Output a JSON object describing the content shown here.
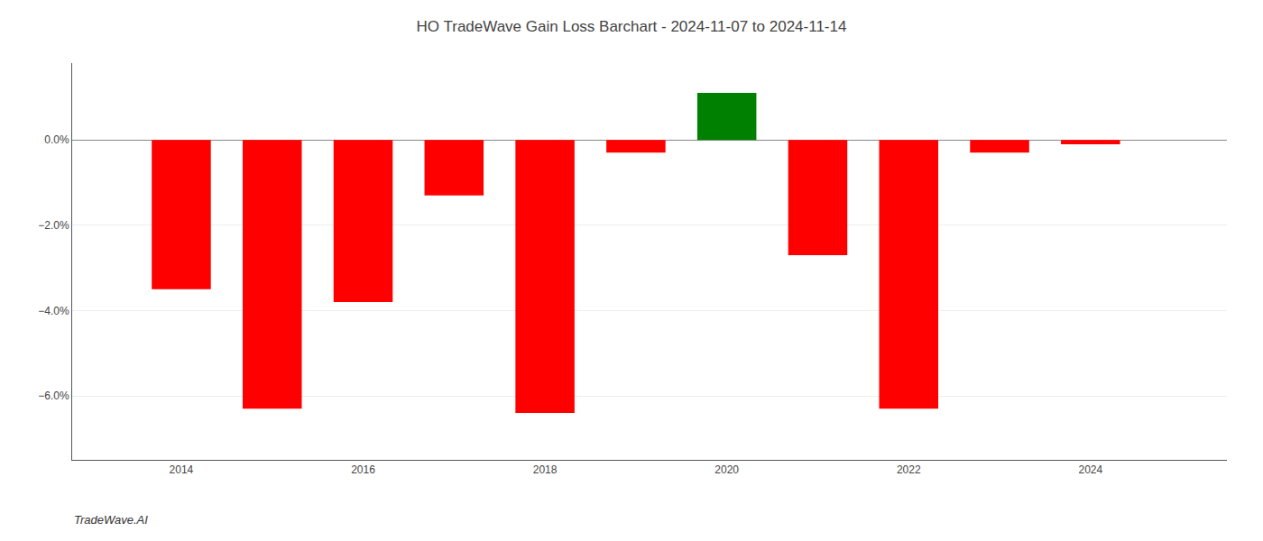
{
  "chart_data": {
    "type": "bar",
    "title": "HO TradeWave Gain Loss Barchart - 2024-11-07 to 2024-11-14",
    "annotations": [
      "TradeWave.AI"
    ],
    "x": [
      2014,
      2015,
      2016,
      2017,
      2018,
      2019,
      2020,
      2021,
      2022,
      2023,
      2024
    ],
    "values": [
      -0.035,
      -0.063,
      -0.038,
      -0.013,
      -0.064,
      -0.003,
      0.011,
      -0.027,
      -0.063,
      -0.003,
      -0.001
    ],
    "colors": [
      "#FF0000",
      "#FF0000",
      "#FF0000",
      "#FF0000",
      "#FF0000",
      "#FF0000",
      "#008000",
      "#FF0000",
      "#FF0000",
      "#FF0000",
      "#FF0000"
    ],
    "ylim": [
      -0.075,
      0.018
    ],
    "yticks": [
      {
        "value": -0.06,
        "label": "−6.0%"
      },
      {
        "value": -0.04,
        "label": "−4.0%"
      },
      {
        "value": -0.02,
        "label": "−2.0%"
      },
      {
        "value": 0.0,
        "label": "0.0%"
      }
    ],
    "xlim": [
      2012.8,
      2025.5
    ],
    "xticks": [
      2014,
      2016,
      2018,
      2020,
      2022,
      2024
    ],
    "grid": "y"
  }
}
